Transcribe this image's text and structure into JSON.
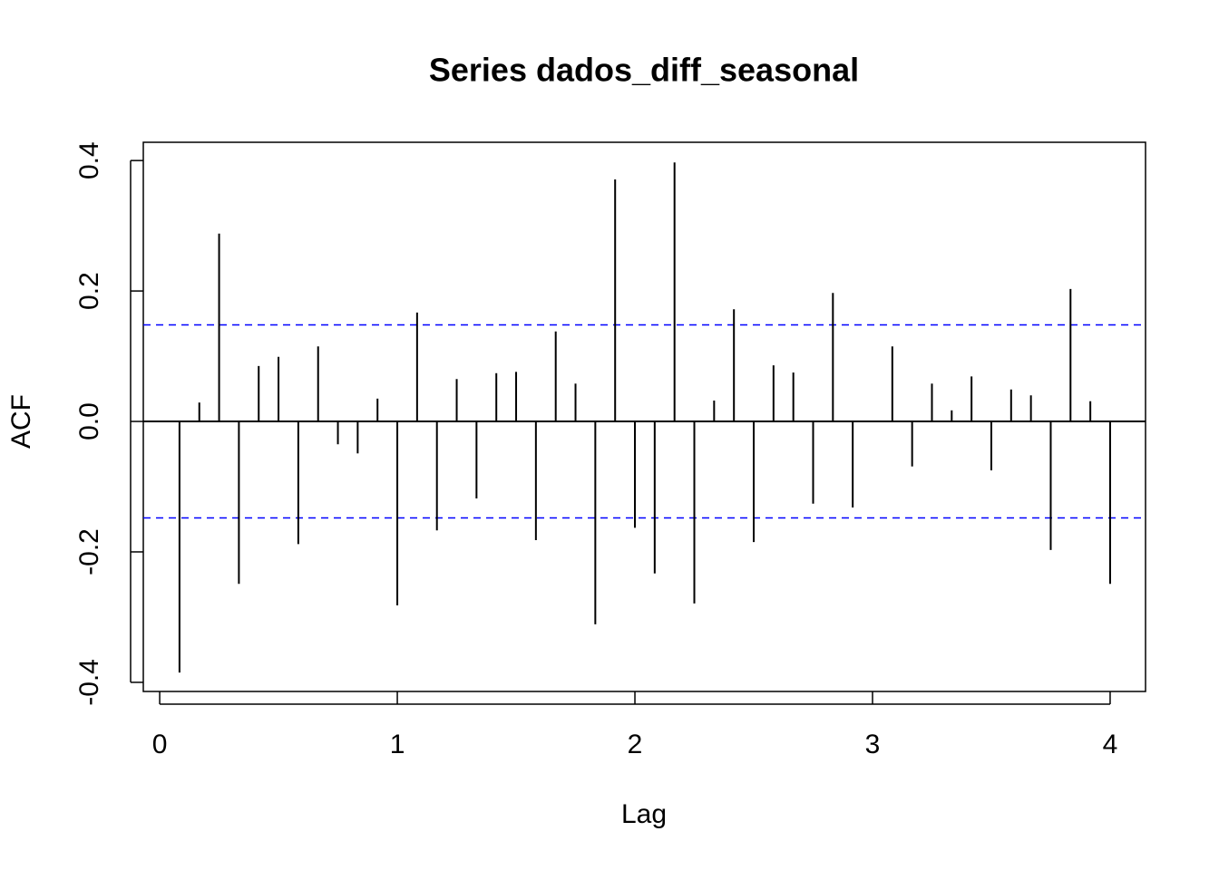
{
  "chart_data": {
    "type": "acf",
    "title": "Series dados_diff_seasonal",
    "x_label": "Lag",
    "y_label": "ACF",
    "x": [
      0.0833,
      0.1667,
      0.25,
      0.3333,
      0.4167,
      0.5,
      0.5833,
      0.6667,
      0.75,
      0.8333,
      0.9167,
      1.0,
      1.0833,
      1.1667,
      1.25,
      1.3333,
      1.4167,
      1.5,
      1.5833,
      1.6667,
      1.75,
      1.8333,
      1.9167,
      2.0,
      2.0833,
      2.1667,
      2.25,
      2.3333,
      2.4167,
      2.5,
      2.5833,
      2.6667,
      2.75,
      2.8333,
      2.9167,
      3.0,
      3.0833,
      3.1667,
      3.25,
      3.3333,
      3.4167,
      3.5,
      3.5833,
      3.6667,
      3.75,
      3.8333,
      3.9167,
      4.0
    ],
    "values": [
      -0.385,
      0.029,
      0.288,
      -0.249,
      0.085,
      0.099,
      -0.188,
      0.115,
      -0.035,
      -0.049,
      0.035,
      -0.282,
      0.167,
      -0.167,
      0.065,
      -0.118,
      0.074,
      0.076,
      -0.182,
      0.138,
      0.058,
      -0.311,
      0.371,
      -0.163,
      -0.233,
      0.397,
      -0.279,
      0.032,
      0.172,
      -0.185,
      0.086,
      0.075,
      -0.126,
      0.197,
      -0.132,
      -0.001,
      0.115,
      -0.069,
      0.058,
      0.017,
      0.069,
      -0.075,
      0.049,
      0.04,
      -0.197,
      0.203,
      0.031,
      -0.249
    ],
    "color": "#000000",
    "ci": 0.148,
    "ci_color": "#0000ff",
    "xlim": [
      -0.069,
      4.149
    ],
    "ylim": [
      -0.414,
      0.428
    ],
    "xticks": [
      0,
      1,
      2,
      3,
      4
    ],
    "yticks": [
      -0.4,
      -0.2,
      {
        "value": 0,
        "label": "0.0"
      },
      0.2,
      0.4
    ]
  }
}
